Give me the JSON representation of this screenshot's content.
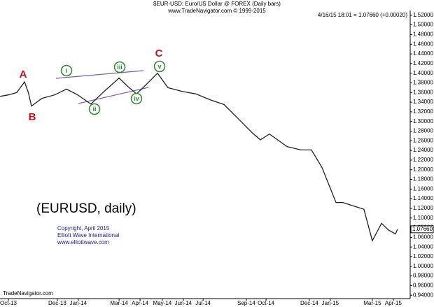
{
  "chart_data": {
    "type": "line",
    "title": "$EUR-USD: Euro/US Dollar @ FOREX  (Daily bars)",
    "subtitle": "www.TradeNavigator.com © 1999-2015",
    "quote": "4/16/15 18:01 = 1.07660 (+0.00020)",
    "chart_label": "(EURUSD, daily)",
    "credits": [
      "Copyright, April 2015",
      "Elliott Wave International",
      "www.elliottwave.com"
    ],
    "source": "TradeNavigator.com",
    "wave_labels": [
      "A",
      "B",
      "C",
      "i",
      "ii",
      "iii",
      "iv",
      "v"
    ],
    "last_value": 1.0766,
    "last_value_label": "1.07660",
    "xlim": [
      -0.4,
      19.1
    ],
    "xticks": [
      {
        "value": 0,
        "label": "Oct-13"
      },
      {
        "value": 2.33,
        "label": "Dec-13"
      },
      {
        "value": 3.33,
        "label": "Jan-14"
      },
      {
        "value": 5.27,
        "label": "Mar-14"
      },
      {
        "value": 6.27,
        "label": "Apr-14"
      },
      {
        "value": 7.33,
        "label": "May-14"
      },
      {
        "value": 8.33,
        "label": "Jun-14"
      },
      {
        "value": 9.27,
        "label": "Jul-14"
      },
      {
        "value": 11.33,
        "label": "Sep-14"
      },
      {
        "value": 12.27,
        "label": "Oct-14"
      },
      {
        "value": 14.33,
        "label": "Dec-14"
      },
      {
        "value": 15.33,
        "label": "Jan-15"
      },
      {
        "value": 17.33,
        "label": "Mar-15"
      },
      {
        "value": 18.33,
        "label": "Apr-15"
      }
    ],
    "ylim": [
      0.933,
      1.527
    ],
    "yticks": [
      {
        "value": 0.94,
        "label": "0.94000"
      },
      {
        "value": 0.96,
        "label": "0.96000"
      },
      {
        "value": 0.98,
        "label": "0.98000"
      },
      {
        "value": 1.0,
        "label": "1.00000"
      },
      {
        "value": 1.02,
        "label": "1.02000"
      },
      {
        "value": 1.04,
        "label": "1.04000"
      },
      {
        "value": 1.06,
        "label": "1.06000"
      },
      {
        "value": 1.08,
        "label": "1.08000"
      },
      {
        "value": 1.1,
        "label": "1.10000"
      },
      {
        "value": 1.12,
        "label": "1.12000"
      },
      {
        "value": 1.14,
        "label": "1.14000"
      },
      {
        "value": 1.16,
        "label": "1.16000"
      },
      {
        "value": 1.18,
        "label": "1.18000"
      },
      {
        "value": 1.2,
        "label": "1.20000"
      },
      {
        "value": 1.22,
        "label": "1.22000"
      },
      {
        "value": 1.24,
        "label": "1.24000"
      },
      {
        "value": 1.26,
        "label": "1.26000"
      },
      {
        "value": 1.28,
        "label": "1.28000"
      },
      {
        "value": 1.3,
        "label": "1.30000"
      },
      {
        "value": 1.32,
        "label": "1.32000"
      },
      {
        "value": 1.34,
        "label": "1.34000"
      },
      {
        "value": 1.36,
        "label": "1.36000"
      },
      {
        "value": 1.38,
        "label": "1.38000"
      },
      {
        "value": 1.4,
        "label": "1.40000"
      },
      {
        "value": 1.42,
        "label": "1.42000"
      },
      {
        "value": 1.44,
        "label": "1.44000"
      },
      {
        "value": 1.46,
        "label": "1.46000"
      },
      {
        "value": 1.48,
        "label": "1.48000"
      },
      {
        "value": 1.5,
        "label": "1.50000"
      },
      {
        "value": 1.52,
        "label": "1.52000"
      }
    ],
    "series": [
      {
        "name": "EUR-USD",
        "color": "#222222",
        "x": [
          -0.4,
          0.0,
          0.4,
          0.77,
          0.95,
          1.1,
          1.6,
          2.2,
          2.77,
          3.3,
          3.93,
          4.5,
          5.27,
          5.7,
          6.1,
          6.6,
          7.1,
          7.6,
          8.3,
          8.93,
          9.6,
          10.27,
          11.1,
          11.6,
          12.0,
          12.43,
          13.27,
          13.93,
          14.43,
          14.93,
          15.27,
          15.6,
          15.93,
          16.43,
          16.93,
          17.33,
          17.77,
          18.1,
          18.43,
          18.53
        ],
        "values": [
          1.352,
          1.355,
          1.36,
          1.382,
          1.36,
          1.332,
          1.348,
          1.355,
          1.367,
          1.355,
          1.336,
          1.36,
          1.39,
          1.372,
          1.357,
          1.378,
          1.4,
          1.37,
          1.362,
          1.357,
          1.345,
          1.335,
          1.299,
          1.277,
          1.262,
          1.274,
          1.248,
          1.241,
          1.241,
          1.205,
          1.168,
          1.132,
          1.132,
          1.125,
          1.118,
          1.053,
          1.089,
          1.075,
          1.067,
          1.0766
        ]
      }
    ]
  }
}
